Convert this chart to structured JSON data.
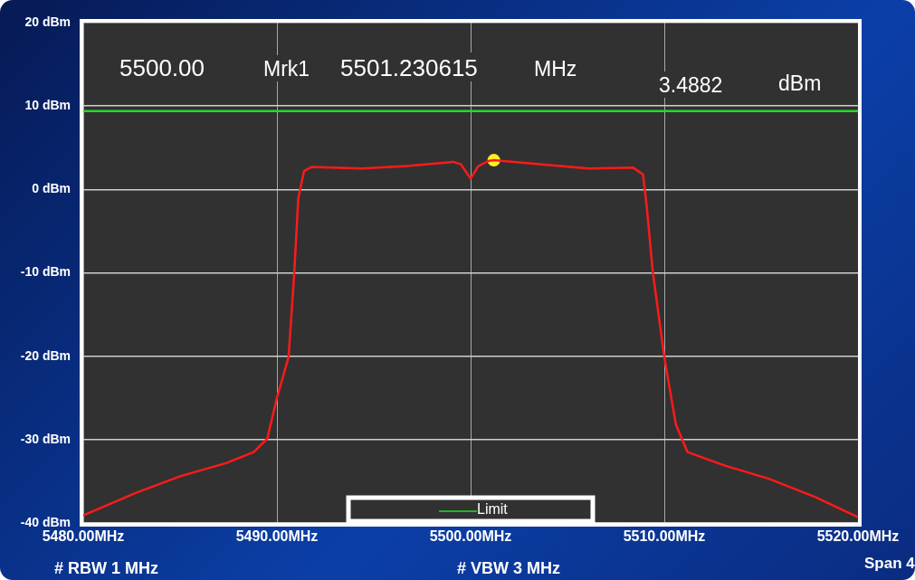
{
  "chart_data": {
    "type": "line",
    "xlim": [
      5480,
      5520
    ],
    "xticks": [
      {
        "value": 5480,
        "label": "5480.00MHz"
      },
      {
        "value": 5490,
        "label": "5490.00MHz"
      },
      {
        "value": 5500,
        "label": "5500.00MHz"
      },
      {
        "value": 5510,
        "label": "5510.00MHz"
      },
      {
        "value": 5520,
        "label": "5520.00MHz"
      }
    ],
    "ylim": [
      -40,
      20
    ],
    "yticks": [
      {
        "value": -40,
        "label": "-40 dBm"
      },
      {
        "value": -30,
        "label": "-30 dBm"
      },
      {
        "value": -20,
        "label": "-20 dBm"
      },
      {
        "value": -10,
        "label": "-10 dBm"
      },
      {
        "value": 0,
        "label": "0 dBm"
      },
      {
        "value": 10,
        "label": "10 dBm"
      },
      {
        "value": 20,
        "label": "20 dBm"
      }
    ],
    "grid": true,
    "legend": "bottom",
    "line_style": "solid",
    "marker": "none",
    "series": [
      {
        "color": "#ff1a1a",
        "x": [
          5480,
          5482.7,
          5485,
          5487.4,
          5488.8,
          5489.5,
          5490,
          5490.6,
          5490.9,
          5491.1,
          5491.4,
          5491.8,
          5494.4,
          5496.7,
          5499.1,
          5499.5,
          5500,
          5500.4,
          5500.9,
          5501.2,
          5503.7,
          5506.1,
          5508.4,
          5508.9,
          5509.1,
          5509.4,
          5510,
          5510.6,
          5511.2,
          5513.1,
          5515.4,
          5517.8,
          5520
        ],
        "values": [
          -39.1,
          -36.4,
          -34.4,
          -32.8,
          -31.5,
          -29.9,
          -25,
          -20.1,
          -9.8,
          -1.1,
          2.2,
          2.7,
          2.5,
          2.8,
          3.3,
          3,
          1.3,
          2.8,
          3.4,
          3.5,
          3,
          2.5,
          2.6,
          1.8,
          -2.2,
          -9.8,
          -20.1,
          -28.2,
          -31.5,
          -33.1,
          -34.7,
          -36.9,
          -39.3
        ]
      },
      {
        "type": "line",
        "name": "Limit",
        "color": "#22dd22",
        "x": [
          5480,
          5520
        ],
        "values": [
          9.4,
          9.4
        ]
      },
      {
        "type": "scatter",
        "color": "#ffee22",
        "marker": "circle",
        "x": [
          5501.2
        ],
        "values": [
          3.5
        ]
      }
    ],
    "annotations": [
      "5500.00",
      "Mrk1",
      "5501.230615",
      "MHz",
      "3.4882",
      "dBm",
      "# RBW 1 MHz",
      "# VBW 3 MHz",
      "Span 4"
    ]
  }
}
